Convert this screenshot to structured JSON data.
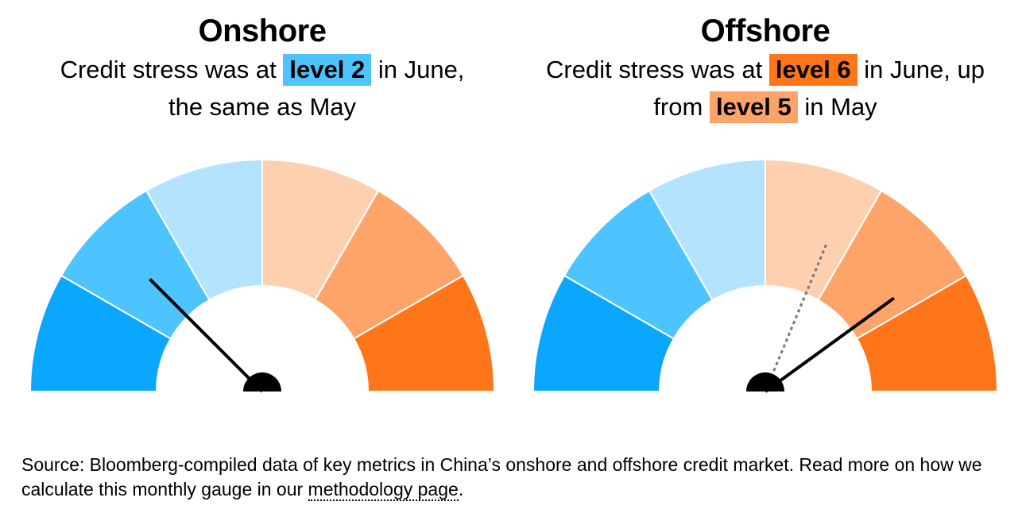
{
  "chart_data": [
    {
      "type": "gauge",
      "title": "Onshore",
      "subtitle": {
        "before": "Credit stress was at",
        "highlight": "level 2",
        "after_highlight": "in June, the same as May",
        "highlight_color": "#4DC3FF",
        "highlight2": "",
        "after_highlight2": "",
        "highlight2_color": ""
      },
      "levels": 8,
      "band_colors": [
        "#0BA7FF",
        "#4DC3FF",
        "#B3E3FF",
        "#FFD0B0",
        "#FFA469",
        "#FF751A"
      ],
      "current_level": 2,
      "previous_level": 2
    },
    {
      "type": "gauge",
      "title": "Offshore",
      "subtitle": {
        "before": "Credit stress was at",
        "highlight": "level 6",
        "after_highlight": "in June, up from",
        "highlight_color": "#FF751A",
        "highlight2": "level 5",
        "after_highlight2": "in May",
        "highlight2_color": "#FFA469"
      },
      "levels": 8,
      "band_colors": [
        "#0BA7FF",
        "#4DC3FF",
        "#B3E3FF",
        "#FFD0B0",
        "#FFA469",
        "#FF751A"
      ],
      "current_level": 6.4,
      "previous_level": 5
    }
  ],
  "footer": {
    "source_text": "Source: Bloomberg-compiled data of key metrics in China’s onshore and offshore credit market. Read more on how we calculate this monthly gauge in our",
    "link_text": "methodology page",
    "end_punct": "."
  }
}
